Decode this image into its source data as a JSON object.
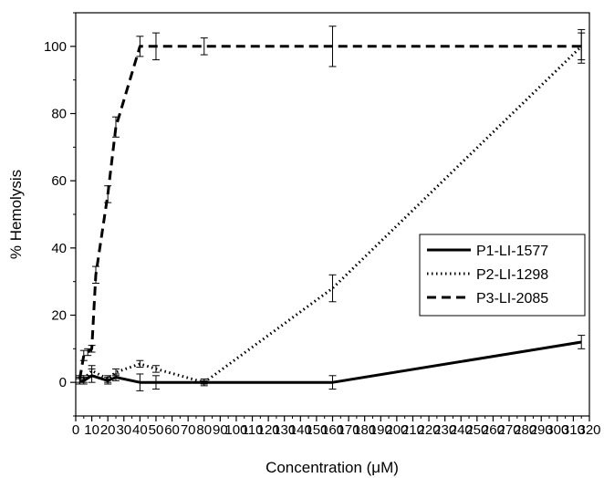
{
  "chart_data": {
    "type": "line",
    "xlabel": "Concentration (μM)",
    "ylabel": "% Hemolysis",
    "xlim": [
      0,
      320
    ],
    "ylim": [
      -10,
      110
    ],
    "x_ticks": [
      0,
      10,
      20,
      30,
      40,
      50,
      60,
      70,
      80,
      90,
      100,
      110,
      120,
      130,
      140,
      150,
      160,
      170,
      180,
      190,
      200,
      210,
      220,
      230,
      240,
      250,
      260,
      270,
      280,
      290,
      300,
      310,
      320
    ],
    "y_ticks": [
      0,
      20,
      40,
      60,
      80,
      100
    ],
    "legend_position": "right, mid-height",
    "series": [
      {
        "name": "P1-LI-1577",
        "style": "solid",
        "x": [
          2.5,
          5,
          10,
          20,
          25,
          40,
          50,
          80,
          160,
          315
        ],
        "y": [
          0.3,
          0.5,
          2,
          0.5,
          1.5,
          0,
          0,
          0,
          0,
          12
        ],
        "err": [
          0.8,
          1,
          2,
          1,
          1,
          2.5,
          2,
          1,
          2,
          2
        ]
      },
      {
        "name": "P2-LI-1298",
        "style": "dotted",
        "x": [
          2.5,
          5,
          10,
          20,
          25,
          40,
          50,
          80,
          160,
          315
        ],
        "y": [
          0.5,
          1,
          3.5,
          1,
          3,
          5.5,
          4,
          0,
          28,
          100
        ],
        "err": [
          1,
          1,
          1.5,
          1,
          1,
          1,
          1,
          0.5,
          4,
          5
        ]
      },
      {
        "name": "P3-LI-2085",
        "style": "dashed",
        "x": [
          2.5,
          5,
          7.5,
          10,
          12.5,
          20,
          25,
          40,
          50,
          80,
          160,
          315
        ],
        "y": [
          1,
          8,
          9,
          10,
          32,
          56,
          76,
          100,
          100,
          100,
          100,
          100
        ],
        "err": [
          1,
          1.5,
          1,
          1,
          2.5,
          2.5,
          3,
          3,
          4,
          2.5,
          6,
          4
        ]
      }
    ]
  }
}
